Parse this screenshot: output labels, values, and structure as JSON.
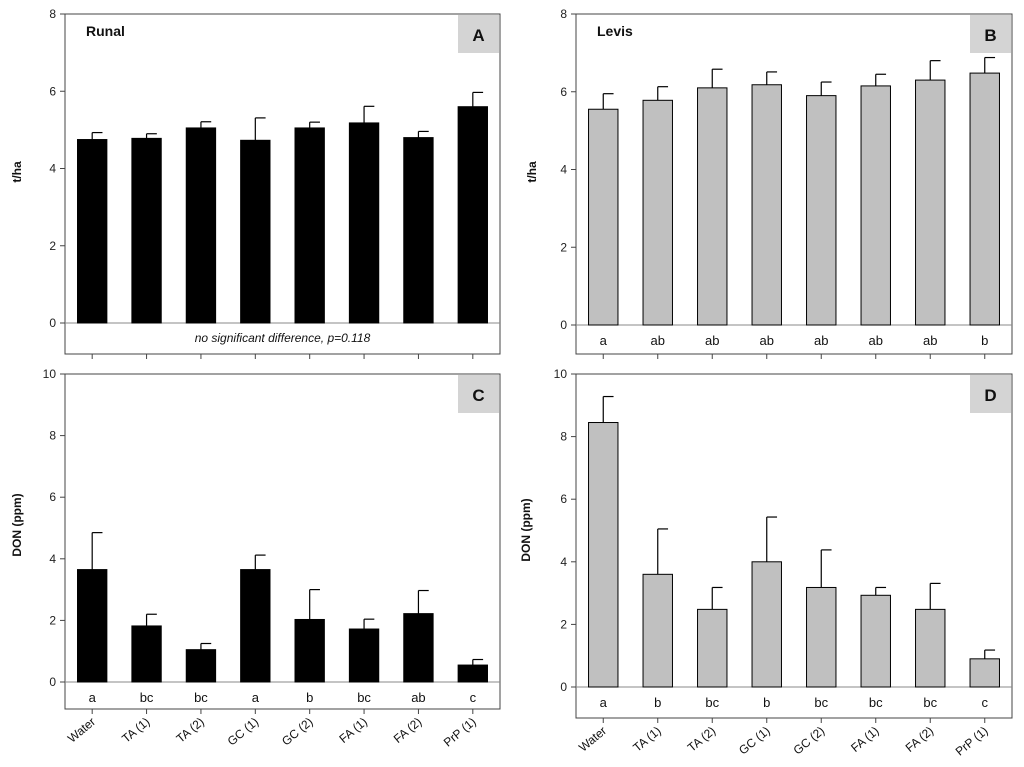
{
  "chart_data": [
    {
      "panel": "A",
      "type": "bar",
      "title": "Runal",
      "ylabel": "t/ha",
      "ylim": [
        0,
        8
      ],
      "yticks": [
        0,
        2,
        4,
        6,
        8
      ],
      "bar_color": "#000000",
      "categories": [
        "Water",
        "TA (1)",
        "TA (2)",
        "GC (1)",
        "GC (2)",
        "FA (1)",
        "FA (2)",
        "PrP (1)"
      ],
      "values": [
        4.75,
        4.78,
        5.05,
        4.73,
        5.05,
        5.18,
        4.8,
        5.6
      ],
      "errors": [
        0.18,
        0.12,
        0.16,
        0.58,
        0.15,
        0.43,
        0.16,
        0.37
      ],
      "letters": [],
      "note": "no significant difference, p=0.118",
      "show_x_labels": false
    },
    {
      "panel": "B",
      "type": "bar",
      "title": "Levis",
      "ylabel": "t/ha",
      "ylim": [
        0,
        8
      ],
      "yticks": [
        0,
        2,
        4,
        6,
        8
      ],
      "bar_color": "#c0c0c0",
      "categories": [
        "Water",
        "TA (1)",
        "TA (2)",
        "GC (1)",
        "GC (2)",
        "FA (1)",
        "FA (2)",
        "PrP (1)"
      ],
      "values": [
        5.55,
        5.78,
        6.1,
        6.18,
        5.9,
        6.15,
        6.3,
        6.48
      ],
      "errors": [
        0.4,
        0.35,
        0.48,
        0.33,
        0.35,
        0.3,
        0.5,
        0.4
      ],
      "letters": [
        "a",
        "ab",
        "ab",
        "ab",
        "ab",
        "ab",
        "ab",
        "b"
      ],
      "note": "",
      "show_x_labels": false
    },
    {
      "panel": "C",
      "type": "bar",
      "title": "",
      "ylabel": "DON (ppm)",
      "ylim": [
        0,
        10
      ],
      "yticks": [
        0,
        2,
        4,
        6,
        8,
        10
      ],
      "bar_color": "#000000",
      "categories": [
        "Water",
        "TA (1)",
        "TA (2)",
        "GC (1)",
        "GC (2)",
        "FA (1)",
        "FA (2)",
        "PrP (1)"
      ],
      "values": [
        3.65,
        1.82,
        1.05,
        3.65,
        2.03,
        1.72,
        2.22,
        0.55
      ],
      "errors": [
        1.2,
        0.38,
        0.2,
        0.47,
        0.97,
        0.32,
        0.75,
        0.18
      ],
      "letters": [
        "a",
        "bc",
        "bc",
        "a",
        "b",
        "bc",
        "ab",
        "c"
      ],
      "note": "",
      "show_x_labels": true
    },
    {
      "panel": "D",
      "type": "bar",
      "title": "",
      "ylabel": "DON (ppm)",
      "ylim": [
        0,
        10
      ],
      "yticks": [
        0,
        2,
        4,
        6,
        8,
        10
      ],
      "bar_color": "#c0c0c0",
      "categories": [
        "Water",
        "TA (1)",
        "TA (2)",
        "GC (1)",
        "GC (2)",
        "FA (1)",
        "FA (2)",
        "PrP (1)"
      ],
      "values": [
        8.45,
        3.6,
        2.48,
        4.0,
        3.18,
        2.93,
        2.48,
        0.9
      ],
      "errors": [
        0.83,
        1.45,
        0.7,
        1.43,
        1.2,
        0.25,
        0.83,
        0.28
      ],
      "letters": [
        "a",
        "b",
        "bc",
        "b",
        "bc",
        "bc",
        "bc",
        "c"
      ],
      "note": "",
      "show_x_labels": true
    }
  ]
}
